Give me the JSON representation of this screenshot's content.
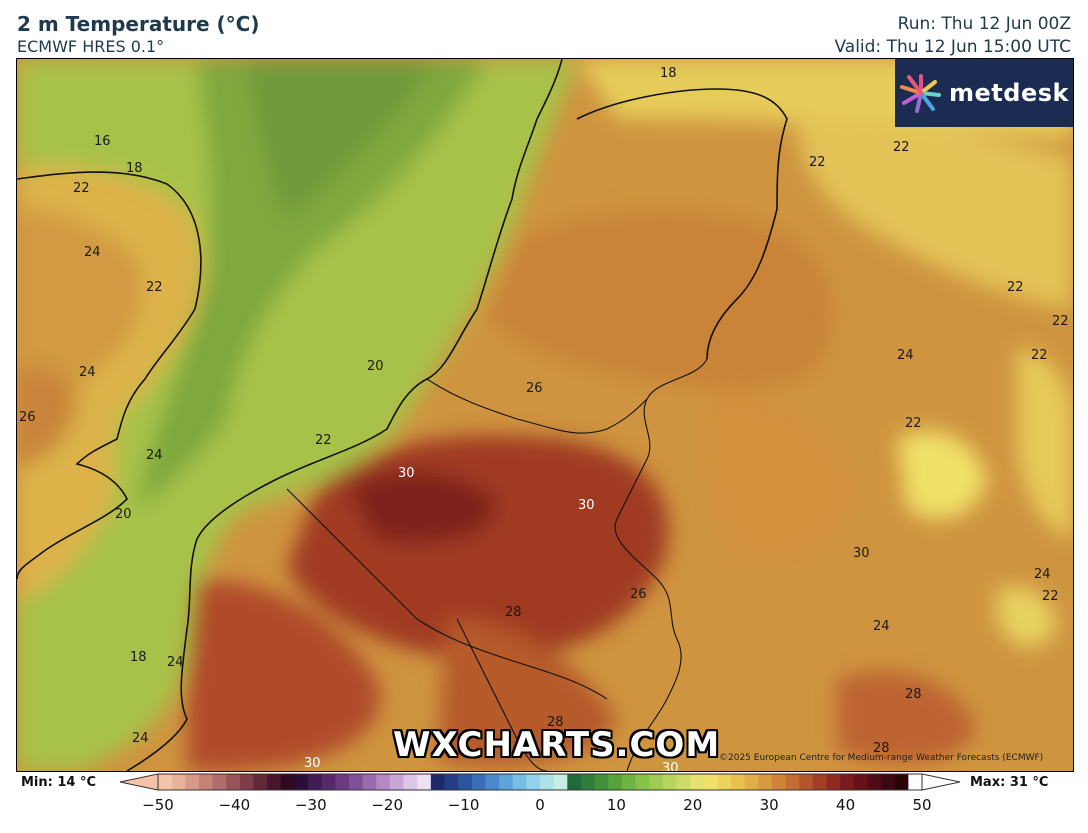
{
  "header": {
    "title": "2 m Temperature (°C)",
    "subtitle": "ECMWF HRES 0.1°",
    "run": "Run: Thu 12 Jun 00Z",
    "valid": "Valid: Thu 12 Jun 15:00 UTC"
  },
  "logo": {
    "text": "metdesk",
    "icon": "metdesk-burst-icon"
  },
  "watermark": "WXCHARTS.COM",
  "copyright": "©2025 European Centre for Medium-range Weather Forecasts (ECMWF)",
  "map": {
    "contour_labels": [
      "18",
      "16",
      "18",
      "22",
      "24",
      "22",
      "22",
      "22",
      "22",
      "22",
      "24",
      "22",
      "24",
      "20",
      "26",
      "26",
      "22",
      "24",
      "20",
      "30",
      "30",
      "22",
      "24",
      "22",
      "26",
      "28",
      "18",
      "24",
      "24",
      "28",
      "28",
      "24",
      "30",
      "30",
      "28",
      "30"
    ]
  },
  "legend": {
    "min_label": "Min: 14 °C",
    "max_label": "Max: 31 °C",
    "ticks": [
      "−50",
      "−40",
      "−30",
      "−20",
      "−10",
      "0",
      "10",
      "20",
      "30",
      "40",
      "50"
    ],
    "colors": [
      "#f5c4a8",
      "#e8b39b",
      "#d69a8a",
      "#c48279",
      "#b06b6b",
      "#985459",
      "#7d3e4a",
      "#61283a",
      "#47162c",
      "#30081f",
      "#2a0d3a",
      "#3f1c52",
      "#55296a",
      "#6b3a82",
      "#82509a",
      "#9b6bb0",
      "#b488c4",
      "#c9a6d6",
      "#dcc6e6",
      "#ece0f2",
      "#1c2a6b",
      "#233d86",
      "#2d54a0",
      "#3a6db8",
      "#4b88cc",
      "#5fa3da",
      "#77bde4",
      "#93d2ea",
      "#aee2ea",
      "#c6eee6",
      "#1f6b3a",
      "#2f7d3a",
      "#42903c",
      "#58a23e",
      "#6fb343",
      "#86c14a",
      "#9fcc52",
      "#b7d45c",
      "#cddc66",
      "#e2e272",
      "#f0e068",
      "#ecd35a",
      "#e7c24e",
      "#e1ae46",
      "#d99a40",
      "#cf843a",
      "#c36c34",
      "#b4552d",
      "#a23e26",
      "#8f2a20",
      "#7a1a1c",
      "#661218",
      "#4f0c14",
      "#3a0810",
      "#2a0508",
      "#ffffff"
    ]
  }
}
